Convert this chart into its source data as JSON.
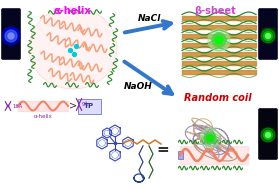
{
  "bg_color": "#ffffff",
  "alpha_helix_label": "α-helix",
  "alpha_helix_color": "#ff00ff",
  "beta_sheet_label": "β-sheet",
  "beta_sheet_color": "#cc44cc",
  "random_coil_label": "Random coil",
  "random_coil_color": "#cc0000",
  "nacl_label": "NaCl",
  "naoh_label": "NaOH",
  "arrow_color": "#3377cc",
  "tp_label": "TP",
  "alpha_helix_bottom_label": "α-helix",
  "helix_salmon": "#f4a07a",
  "chain_green": "#2d8b2d",
  "blue_chem": "#3344bb",
  "orange_chain": "#cc7722",
  "dark_green_chain": "#005500"
}
